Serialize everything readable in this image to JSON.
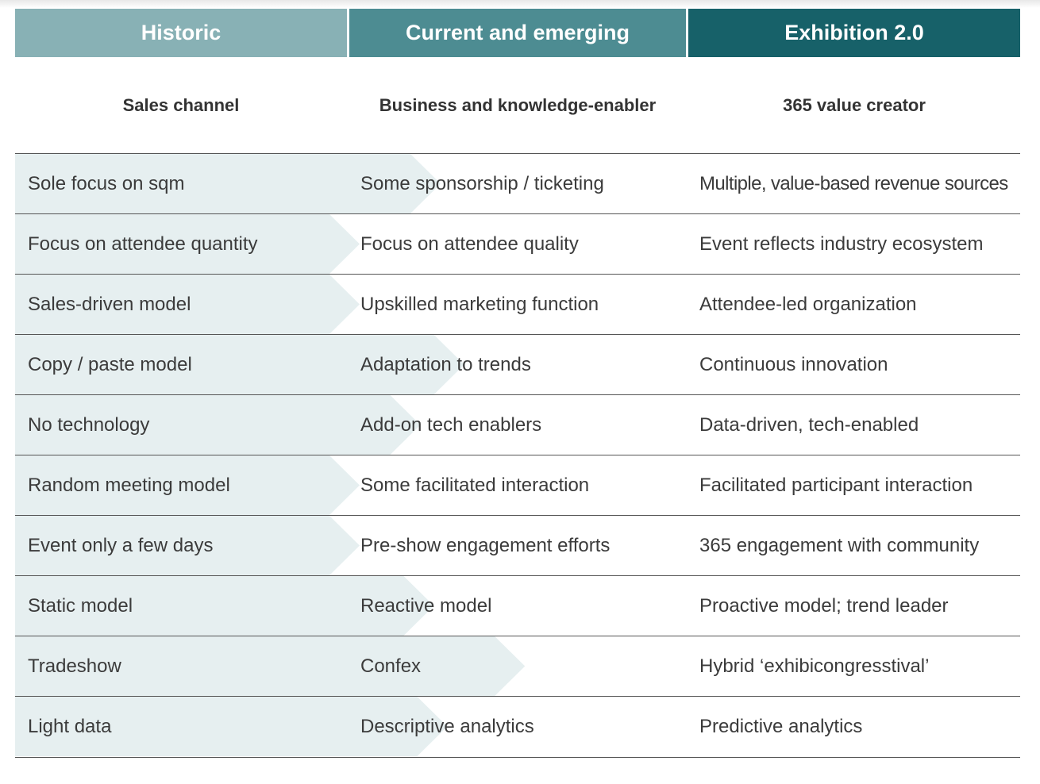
{
  "colors": {
    "historic_header": "#88b1b5",
    "current_header": "#4d8c92",
    "exhibition_header": "#176169",
    "row_shade": "#e6eff0",
    "rule": "#555555"
  },
  "header": {
    "historic": "Historic",
    "current": "Current and emerging",
    "exhibition": "Exhibition 2.0"
  },
  "subheader": {
    "historic": "Sales channel",
    "current": "Business and knowledge-enabler",
    "exhibition": "365 value creator"
  },
  "rows": [
    {
      "historic": "Sole focus on sqm",
      "current": "Some sponsorship / ticketing",
      "exhibition": "Multiple, value-based revenue sources",
      "progress": 0.24
    },
    {
      "historic": "Focus on attendee quantity",
      "current": "Focus on attendee quality",
      "exhibition": "Event reflects industry ecosystem",
      "progress": 0.0
    },
    {
      "historic": "Sales-driven model",
      "current": "Upskilled marketing function",
      "exhibition": "Attendee-led organization",
      "progress": 0.0
    },
    {
      "historic": "Copy / paste model",
      "current": "Adaptation to trends",
      "exhibition": "Continuous innovation",
      "progress": 0.31
    },
    {
      "historic": "No technology",
      "current": "Add-on tech enablers",
      "exhibition": "Data-driven, tech-enabled",
      "progress": 0.18
    },
    {
      "historic": "Random meeting model",
      "current": "Some facilitated interaction",
      "exhibition": "Facilitated participant interaction",
      "progress": 0.0
    },
    {
      "historic": "Event only a few days",
      "current": "Pre-show engagement efforts",
      "exhibition": "365 engagement with community",
      "progress": 0.0
    },
    {
      "historic": "Static model",
      "current": "Reactive model",
      "exhibition": "Proactive model; trend leader",
      "progress": 0.22
    },
    {
      "historic": "Tradeshow",
      "current": "Confex",
      "exhibition": "Hybrid ‘exhibicongresstival’",
      "progress": 0.49
    },
    {
      "historic": "Light data",
      "current": "Descriptive analytics",
      "exhibition": "Predictive analytics",
      "progress": 0.26
    }
  ]
}
